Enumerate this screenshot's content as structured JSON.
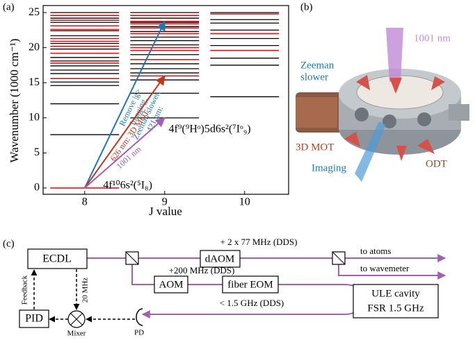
{
  "chart_data": {
    "type": "levels",
    "panel_label": "(a)",
    "ylabel": "Wavenumber (1000 cm⁻¹)",
    "xlabel": "J value",
    "xlim": [
      7.48,
      10.55
    ],
    "ylim": [
      -0.9,
      26
    ],
    "xticks": [
      8,
      9,
      10
    ],
    "yticks": [
      0,
      5,
      10,
      15,
      20,
      25
    ],
    "level_color": "#000000",
    "highlight_color": "#d7191c",
    "columns": [
      {
        "x": 8,
        "levels": [
          7.6,
          12.0,
          14.6,
          15.1,
          16.3,
          16.8,
          17.4,
          18.1,
          18.6,
          19.8,
          20.6,
          21.7,
          22.4,
          23.6,
          24.2,
          25.0
        ],
        "highlighted": [
          0,
          15.6,
          17.8,
          19.2,
          20.2,
          20.9,
          21.3,
          22.6,
          23.1,
          23.9,
          24.6
        ]
      },
      {
        "x": 9,
        "levels": [
          9.99,
          13.5,
          15.4,
          16.4,
          17.0,
          17.7,
          19.0,
          20.4,
          21.0,
          21.5,
          22.3,
          23.0,
          23.6,
          24.2,
          25.0
        ],
        "highlighted": [
          15.97,
          18.3,
          19.6,
          20.0,
          22.0,
          22.8,
          23.4,
          23.74,
          24.6
        ]
      },
      {
        "x": 10,
        "levels": [
          13.0,
          17.5,
          18.5,
          20.3,
          21.3,
          22.5,
          23.5,
          24.0,
          25.0
        ],
        "highlighted": [
          19.6,
          22.0,
          24.8
        ]
      }
    ],
    "transitions": [
      {
        "label_lines": [
          "421 nm:",
          "Zeeman slower,",
          "Imaging,",
          "Remove |g>"
        ],
        "color": "#1f78b4",
        "from": [
          8,
          0
        ],
        "to": [
          9,
          23.74
        ]
      },
      {
        "label_lines": [
          "626 nm: 3D MOT"
        ],
        "color": "#c0361b",
        "from": [
          8,
          0
        ],
        "to": [
          9,
          15.97
        ]
      },
      {
        "label_lines": [
          "1001 nm"
        ],
        "color": "#a45fb5",
        "from": [
          8,
          0
        ],
        "to": [
          9,
          9.99
        ]
      }
    ],
    "state_labels": [
      "4f¹⁰6s²(⁵I₈)",
      "4f⁹(⁹Hᵒ)5d6s²(⁷Iᵒ₉)"
    ]
  },
  "panel_b": {
    "label": "(b)",
    "beam_1001": "1001 nm",
    "zeeman": [
      "Zeeman",
      "slower"
    ],
    "mot": "3D MOT",
    "imaging": "Imaging",
    "odt": "ODT"
  },
  "panel_c": {
    "label": "(c)",
    "ecdl": "ECDL",
    "daom": "dAOM",
    "daom_freq": "+ 2 x 77 MHz (DDS)",
    "to_atoms": "to atoms",
    "to_wavemeter": "to wavemeter",
    "aom": "AOM",
    "aom_freq": "+200 MHz (DDS)",
    "eom": "fiber EOM",
    "eom_freq": "< 1.5 GHz (DDS)",
    "ule": [
      "ULE cavity",
      "FSR 1.5 GHz"
    ],
    "pid": "PID",
    "mixer": "Mixer",
    "pd": "PD",
    "feedback": "Feedback",
    "mod": "20 MHz"
  }
}
